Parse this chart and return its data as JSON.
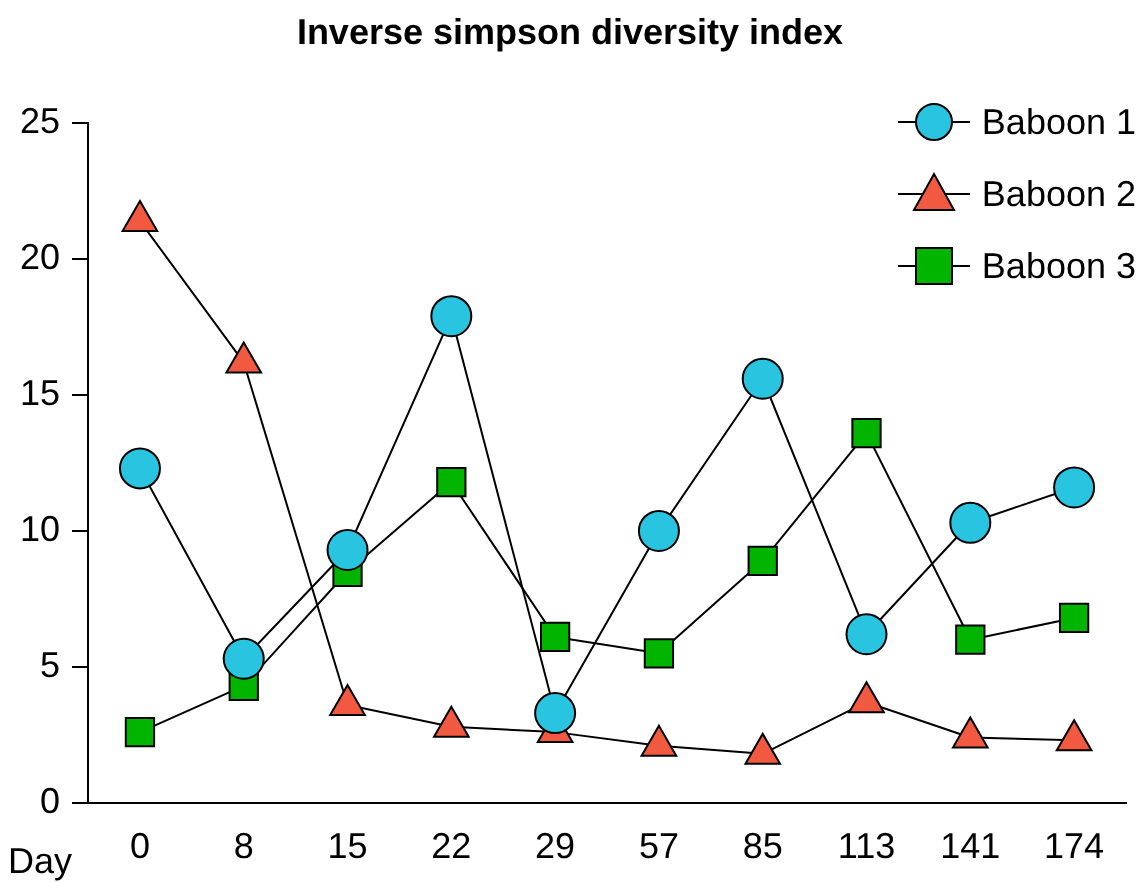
{
  "chart_data": {
    "type": "line",
    "title": "Inverse simpson diversity index",
    "xlabel": "Day",
    "categories": [
      "0",
      "8",
      "15",
      "22",
      "29",
      "57",
      "85",
      "113",
      "141",
      "174"
    ],
    "series": [
      {
        "name": "Baboon 1",
        "color": "#29c5e0",
        "marker": "circle",
        "values": [
          12.3,
          5.3,
          9.3,
          17.9,
          3.3,
          10.0,
          15.6,
          6.2,
          10.3,
          11.6
        ]
      },
      {
        "name": "Baboon 2",
        "color": "#f15a40",
        "marker": "triangle",
        "values": [
          21.4,
          16.2,
          3.6,
          2.8,
          2.6,
          2.1,
          1.8,
          3.7,
          2.4,
          2.3
        ]
      },
      {
        "name": "Baboon 3",
        "color": "#00b400",
        "marker": "square",
        "values": [
          2.6,
          4.3,
          8.5,
          11.8,
          6.1,
          5.5,
          8.9,
          13.6,
          6.0,
          6.8
        ]
      }
    ],
    "ylim": [
      0,
      25
    ],
    "yticks": [
      0,
      5,
      10,
      15,
      20,
      25
    ],
    "grid": false,
    "legend": "top right",
    "line_style": "solid"
  }
}
